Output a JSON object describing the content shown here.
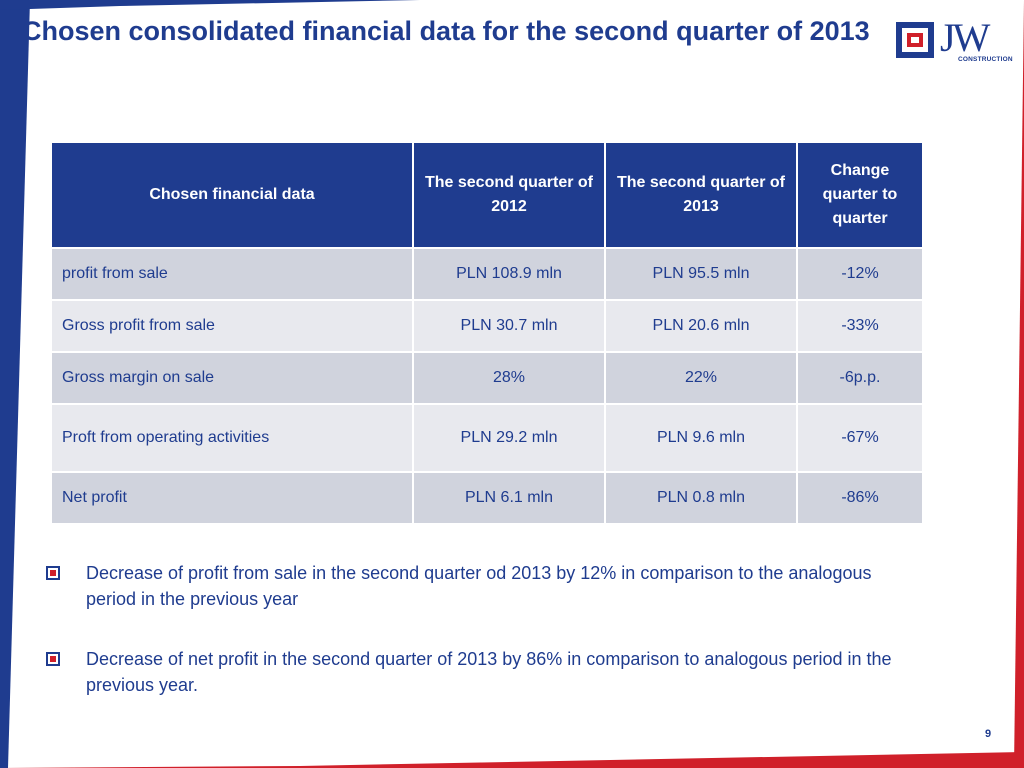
{
  "slide": {
    "title": "Chosen consolidated financial data for the second quarter of 2013",
    "page_number": "9"
  },
  "logo": {
    "text": "JW",
    "subtext": "CONSTRUCTION"
  },
  "table": {
    "headers": [
      "Chosen financial data",
      "The second quarter of 2012",
      "The second quarter of 2013",
      "Change quarter to quarter"
    ],
    "rows": [
      [
        "profit from sale",
        "PLN 108.9 mln",
        "PLN 95.5 mln",
        "-12%"
      ],
      [
        "Gross profit from sale",
        "PLN 30.7 mln",
        "PLN 20.6 mln",
        "-33%"
      ],
      [
        "Gross margin on sale",
        "28%",
        "22%",
        "-6p.p."
      ],
      [
        "Proft from operating activities",
        "PLN 29.2 mln",
        "PLN 9.6 mln",
        "-67%"
      ],
      [
        "Net profit",
        "PLN 6.1 mln",
        "PLN 0.8 mln",
        "-86%"
      ]
    ]
  },
  "bullets": [
    "Decrease of profit from sale in the second quarter od 2013 by 12% in comparison to the analogous period in the previous year",
    "Decrease of net profit in the second quarter of 2013 by 86% in comparison to analogous period in the previous year."
  ],
  "colors": {
    "navy": "#1f3c8f",
    "red": "#d0202a",
    "row_dark": "#d0d3dd",
    "row_light": "#e8e9ee"
  }
}
